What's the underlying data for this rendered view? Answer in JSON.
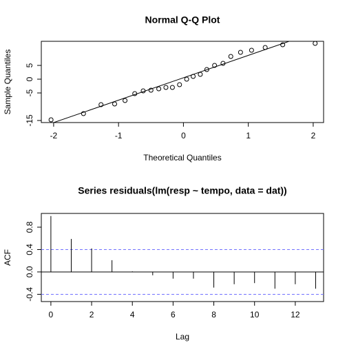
{
  "chart_data": [
    {
      "type": "scatter",
      "title": "Normal Q-Q Plot",
      "x_label": "Theoretical Quantiles",
      "y_label": "Sample Quantiles",
      "x": [
        -2.04,
        -1.54,
        -1.27,
        -1.06,
        -0.9,
        -0.75,
        -0.62,
        -0.5,
        -0.38,
        -0.27,
        -0.17,
        -0.06,
        0.05,
        0.15,
        0.26,
        0.36,
        0.48,
        0.61,
        0.73,
        0.88,
        1.05,
        1.26,
        1.53,
        2.03
      ],
      "values": [
        -14.75,
        -12.5,
        -9.25,
        -9,
        -7.75,
        -5.25,
        -4.25,
        -4,
        -3.5,
        -3,
        -3,
        -2,
        0,
        1,
        1.75,
        3.5,
        5,
        5.75,
        8.25,
        9.75,
        10.5,
        11.5,
        12.5,
        13
      ],
      "color": "#000000",
      "reference_line": {
        "intercept": 0.51,
        "slope": 8.13
      },
      "xlim": [
        -2.19,
        2.16
      ],
      "ylim": [
        -15.75,
        13.75
      ],
      "xticks": [
        -2,
        -1,
        0,
        1,
        2
      ],
      "yticks": [
        -15,
        -5,
        0,
        5
      ]
    },
    {
      "type": "acf",
      "title": "Series  residuals(lm(resp ~ tempo, data = dat))",
      "x_label": "Lag",
      "y_label": "ACF",
      "x": [
        0,
        1,
        2,
        3,
        4,
        5,
        6,
        7,
        8,
        9,
        10,
        11,
        12,
        13
      ],
      "values": [
        1.0,
        0.59,
        0.42,
        0.21,
        0.01,
        -0.06,
        -0.12,
        -0.12,
        -0.28,
        -0.22,
        -0.2,
        -0.3,
        -0.22,
        -0.3
      ],
      "color": "#000000",
      "ci": 0.4,
      "ci_color": "#7070ff",
      "xlim": [
        -0.47,
        13.39
      ],
      "ylim": [
        -0.53,
        1.046
      ],
      "xticks": [
        0,
        2,
        4,
        6,
        8,
        10,
        12
      ],
      "yticks": [
        -0.4,
        {
          "value": 0,
          "label": "0.0"
        },
        0.4,
        0.8
      ]
    }
  ]
}
